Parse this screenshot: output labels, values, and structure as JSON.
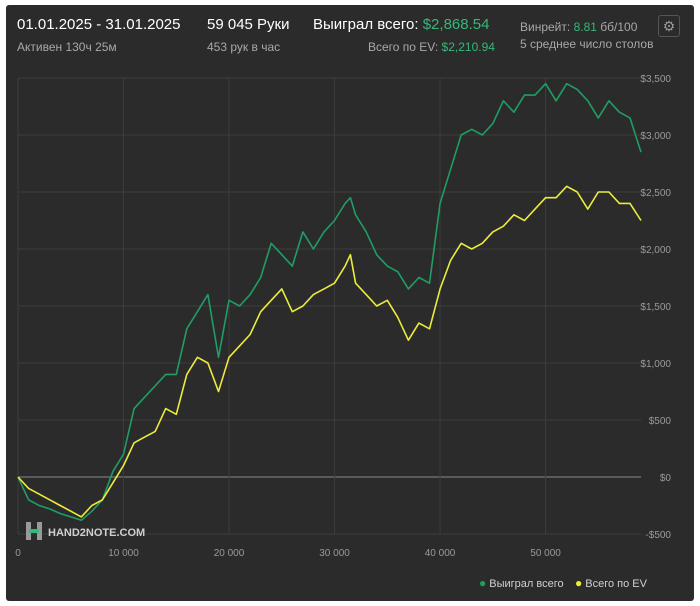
{
  "header": {
    "date_range": "01.01.2025 - 31.01.2025",
    "active": "Активен 130ч 25м",
    "hands": "59 045 Руки",
    "hands_per_hour": "453 рук в час",
    "won_label": "Выиграл всего:",
    "won_value": "$2,868.54",
    "ev_label": "Всего по EV:",
    "ev_value": "$2,210.94",
    "winrate_label": "Винрейт:",
    "winrate_value": "8.81",
    "winrate_unit": "бб/100",
    "tables": "5 среднее число столов"
  },
  "watermark": "HAND2NOTE.COM",
  "colors": {
    "won": "#1f9e64",
    "ev": "#ecec3c",
    "accent": "#35b878",
    "grid": "#3d3d3d",
    "zero": "#8a8a8a"
  },
  "chart_data": {
    "type": "line",
    "xlim": [
      0,
      59045
    ],
    "ylim": [
      -500,
      3500
    ],
    "x_ticks": [
      {
        "v": 0,
        "label": "0"
      },
      {
        "v": 10000,
        "label": "10 000"
      },
      {
        "v": 20000,
        "label": "20 000"
      },
      {
        "v": 30000,
        "label": "30 000"
      },
      {
        "v": 40000,
        "label": "40 000"
      },
      {
        "v": 50000,
        "label": "50 000"
      }
    ],
    "y_ticks": [
      {
        "v": 3500,
        "label": "$3,500"
      },
      {
        "v": 3000,
        "label": "$3,000"
      },
      {
        "v": 2500,
        "label": "$2,500"
      },
      {
        "v": 2000,
        "label": "$2,000"
      },
      {
        "v": 1500,
        "label": "$1,500"
      },
      {
        "v": 1000,
        "label": "$1,000"
      },
      {
        "v": 500,
        "label": "$500"
      },
      {
        "v": 0,
        "label": "$0"
      },
      {
        "v": -500,
        "label": "-$500"
      }
    ],
    "legend_position": "bottom-right",
    "series": [
      {
        "name": "Выиграл всего",
        "x": [
          0,
          1000,
          2000,
          3000,
          4000,
          5000,
          6000,
          7000,
          8000,
          9000,
          10000,
          11000,
          12000,
          13000,
          14000,
          15000,
          16000,
          17000,
          18000,
          19000,
          20000,
          21000,
          22000,
          23000,
          24000,
          25000,
          26000,
          27000,
          28000,
          29000,
          30000,
          31000,
          31500,
          32000,
          33000,
          34000,
          35000,
          36000,
          37000,
          38000,
          39000,
          40000,
          41000,
          42000,
          43000,
          44000,
          45000,
          46000,
          47000,
          48000,
          49000,
          50000,
          51000,
          52000,
          53000,
          54000,
          55000,
          56000,
          57000,
          58000,
          59045
        ],
        "values": [
          0,
          -200,
          -250,
          -280,
          -320,
          -350,
          -380,
          -300,
          -200,
          50,
          200,
          600,
          700,
          800,
          900,
          900,
          1300,
          1450,
          1600,
          1050,
          1550,
          1500,
          1600,
          1750,
          2050,
          1950,
          1850,
          2150,
          2000,
          2150,
          2250,
          2400,
          2450,
          2300,
          2150,
          1950,
          1850,
          1800,
          1650,
          1750,
          1700,
          2400,
          2700,
          3000,
          3050,
          3000,
          3100,
          3300,
          3200,
          3350,
          3350,
          3450,
          3300,
          3450,
          3400,
          3300,
          3150,
          3300,
          3200,
          3150,
          2850
        ]
      },
      {
        "name": "Всего по EV",
        "x": [
          0,
          1000,
          2000,
          3000,
          4000,
          5000,
          6000,
          7000,
          8000,
          9000,
          10000,
          11000,
          12000,
          13000,
          14000,
          15000,
          16000,
          17000,
          18000,
          19000,
          20000,
          21000,
          22000,
          23000,
          24000,
          25000,
          26000,
          27000,
          28000,
          29000,
          30000,
          31000,
          31500,
          32000,
          33000,
          34000,
          35000,
          36000,
          37000,
          38000,
          39000,
          40000,
          41000,
          42000,
          43000,
          44000,
          45000,
          46000,
          47000,
          48000,
          49000,
          50000,
          51000,
          52000,
          53000,
          54000,
          55000,
          56000,
          57000,
          58000,
          59045
        ],
        "values": [
          0,
          -100,
          -150,
          -200,
          -250,
          -300,
          -350,
          -250,
          -200,
          -50,
          100,
          300,
          350,
          400,
          600,
          550,
          900,
          1050,
          1000,
          750,
          1050,
          1150,
          1250,
          1450,
          1550,
          1650,
          1450,
          1500,
          1600,
          1650,
          1700,
          1850,
          1950,
          1700,
          1600,
          1500,
          1550,
          1400,
          1200,
          1350,
          1300,
          1650,
          1900,
          2050,
          2000,
          2050,
          2150,
          2200,
          2300,
          2250,
          2350,
          2450,
          2450,
          2550,
          2500,
          2350,
          2500,
          2500,
          2400,
          2400,
          2250
        ]
      }
    ]
  }
}
